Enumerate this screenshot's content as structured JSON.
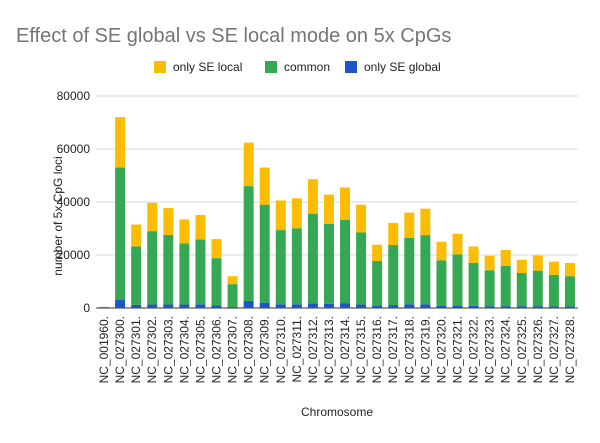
{
  "chart_data": {
    "type": "bar",
    "stacked": true,
    "title": "Effect of SE global vs SE local mode on 5x CpGs",
    "xlabel": "Chromosome",
    "ylabel": "number of 5x CpG loci",
    "ylim": [
      0,
      80000
    ],
    "yticks": [
      0,
      20000,
      40000,
      60000,
      80000
    ],
    "grid": true,
    "legend_position": "top",
    "categories": [
      "NC_001960.",
      "NC_027300.",
      "NC_027301.",
      "NC_027302.",
      "NC_027303.",
      "NC_027304.",
      "NC_027305.",
      "NC_027306.",
      "NC_027307.",
      "NC_027308.",
      "NC_027309.",
      "NC_027310.",
      "NC_027311.",
      "NC_027312.",
      "NC_027313.",
      "NC_027314.",
      "NC_027315.",
      "NC_027316.",
      "NC_027317.",
      "NC_027318.",
      "NC_027319.",
      "NC_027320.",
      "NC_027321.",
      "NC_027322.",
      "NC_027323.",
      "NC_027324.",
      "NC_027325.",
      "NC_027326.",
      "NC_027327.",
      "NC_027328."
    ],
    "series": [
      {
        "name": "only SE global",
        "color": "#1a56c8",
        "values": [
          100,
          3000,
          1200,
          1300,
          1300,
          1300,
          1400,
          1000,
          400,
          2700,
          2000,
          1400,
          1400,
          1800,
          1600,
          1700,
          1300,
          900,
          1100,
          1400,
          1400,
          900,
          900,
          800,
          700,
          700,
          700,
          700,
          600,
          600
        ]
      },
      {
        "name": "common",
        "color": "#34a853",
        "values": [
          300,
          50000,
          22000,
          27700,
          26300,
          23100,
          24500,
          17800,
          8600,
          43300,
          37000,
          28000,
          28700,
          33800,
          30200,
          31500,
          27200,
          16900,
          22700,
          25100,
          26100,
          17100,
          19300,
          16200,
          13500,
          15200,
          12500,
          13400,
          11900,
          11400
        ]
      },
      {
        "name": "only SE local",
        "color": "#fbbc04",
        "values": [
          0,
          19000,
          8300,
          10700,
          10100,
          9000,
          9200,
          7200,
          3000,
          16400,
          14000,
          11200,
          11300,
          13000,
          11000,
          12300,
          10500,
          6100,
          8300,
          9500,
          10000,
          7000,
          7800,
          6200,
          5500,
          6000,
          5000,
          5700,
          5000,
          5000
        ]
      }
    ],
    "legend_order": [
      "only SE local",
      "common",
      "only SE global"
    ]
  }
}
